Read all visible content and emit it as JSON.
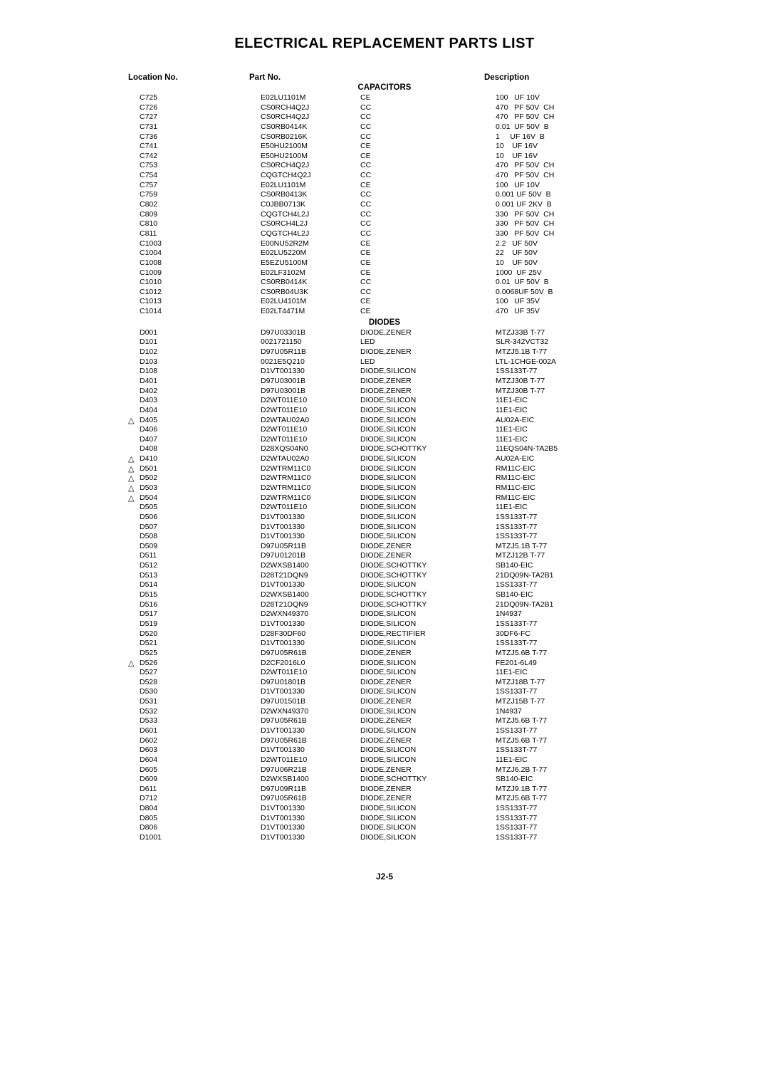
{
  "title": "ELECTRICAL REPLACEMENT PARTS LIST",
  "headers": {
    "location": "Location No.",
    "part": "Part No.",
    "description": "Description"
  },
  "sections": [
    {
      "name": "CAPACITORS",
      "rows": [
        {
          "loc": "C725",
          "part": "E02LU1101M",
          "type": "CE",
          "desc": "100   UF 10V"
        },
        {
          "loc": "C726",
          "part": "CS0RCH4Q2J",
          "type": "CC",
          "desc": "470   PF 50V  CH"
        },
        {
          "loc": "C727",
          "part": "CS0RCH4Q2J",
          "type": "CC",
          "desc": "470   PF 50V  CH"
        },
        {
          "loc": "C731",
          "part": "CS0RB0414K",
          "type": "CC",
          "desc": "0.01  UF 50V  B"
        },
        {
          "loc": "C736",
          "part": "CS0RB0216K",
          "type": "CC",
          "desc": "1     UF 16V  B"
        },
        {
          "loc": "C741",
          "part": "E50HU2100M",
          "type": "CE",
          "desc": "10    UF 16V"
        },
        {
          "loc": "C742",
          "part": "E50HU2100M",
          "type": "CE",
          "desc": "10    UF 16V"
        },
        {
          "loc": "C753",
          "part": "CS0RCH4Q2J",
          "type": "CC",
          "desc": "470   PF 50V  CH"
        },
        {
          "loc": "C754",
          "part": "CQGTCH4Q2J",
          "type": "CC",
          "desc": "470   PF 50V  CH"
        },
        {
          "loc": "C757",
          "part": "E02LU1101M",
          "type": "CE",
          "desc": "100   UF 10V"
        },
        {
          "loc": "C759",
          "part": "CS0RB0413K",
          "type": "CC",
          "desc": "0.001 UF 50V  B"
        },
        {
          "loc": "C802",
          "part": "C0JBB0713K",
          "type": "CC",
          "desc": "0.001 UF 2KV  B"
        },
        {
          "loc": "C809",
          "part": "CQGTCH4L2J",
          "type": "CC",
          "desc": "330   PF 50V  CH"
        },
        {
          "loc": "C810",
          "part": "CS0RCH4L2J",
          "type": "CC",
          "desc": "330   PF 50V  CH"
        },
        {
          "loc": "C811",
          "part": "CQGTCH4L2J",
          "type": "CC",
          "desc": "330   PF 50V  CH"
        },
        {
          "loc": "C1003",
          "part": "E00NU52R2M",
          "type": "CE",
          "desc": "2.2   UF 50V"
        },
        {
          "loc": "C1004",
          "part": "E02LU5220M",
          "type": "CE",
          "desc": "22    UF 50V"
        },
        {
          "loc": "C1008",
          "part": "E5EZU5100M",
          "type": "CE",
          "desc": "10    UF 50V"
        },
        {
          "loc": "C1009",
          "part": "E02LF3102M",
          "type": "CE",
          "desc": "1000  UF 25V"
        },
        {
          "loc": "C1010",
          "part": "CS0RB0414K",
          "type": "CC",
          "desc": "0.01  UF 50V  B"
        },
        {
          "loc": "C1012",
          "part": "CS0RB04U3K",
          "type": "CC",
          "desc": "0.0068UF 50V  B"
        },
        {
          "loc": "C1013",
          "part": "E02LU4101M",
          "type": "CE",
          "desc": "100   UF 35V"
        },
        {
          "loc": "C1014",
          "part": "E02LT4471M",
          "type": "CE",
          "desc": "470   UF 35V"
        }
      ]
    },
    {
      "name": "DIODES",
      "rows": [
        {
          "loc": "D001",
          "part": "D97U03301B",
          "type": "DIODE,ZENER",
          "desc": "MTZJ33B T-77"
        },
        {
          "loc": "D101",
          "part": "0021721150",
          "type": "LED",
          "desc": "SLR-342VCT32"
        },
        {
          "loc": "D102",
          "part": "D97U05R11B",
          "type": "DIODE,ZENER",
          "desc": "MTZJ5.1B T-77"
        },
        {
          "loc": "D103",
          "part": "0021E5Q210",
          "type": "LED",
          "desc": "LTL-1CHGE-002A"
        },
        {
          "loc": "D108",
          "part": "D1VT001330",
          "type": "DIODE,SILICON",
          "desc": "1SS133T-77"
        },
        {
          "loc": "D401",
          "part": "D97U03001B",
          "type": "DIODE,ZENER",
          "desc": "MTZJ30B T-77"
        },
        {
          "loc": "D402",
          "part": "D97U03001B",
          "type": "DIODE,ZENER",
          "desc": "MTZJ30B T-77"
        },
        {
          "loc": "D403",
          "part": "D2WT011E10",
          "type": "DIODE,SILICON",
          "desc": "11E1-EIC"
        },
        {
          "loc": "D404",
          "part": "D2WT011E10",
          "type": "DIODE,SILICON",
          "desc": "11E1-EIC"
        },
        {
          "loc": "D405",
          "part": "D2WTAU02A0",
          "type": "DIODE,SILICON",
          "desc": "AU02A-EIC",
          "marker": true
        },
        {
          "loc": "D406",
          "part": "D2WT011E10",
          "type": "DIODE,SILICON",
          "desc": "11E1-EIC"
        },
        {
          "loc": "D407",
          "part": "D2WT011E10",
          "type": "DIODE,SILICON",
          "desc": "11E1-EIC"
        },
        {
          "loc": "D408",
          "part": "D28XQS04N0",
          "type": "DIODE,SCHOTTKY",
          "desc": "11EQS04N-TA2B5"
        },
        {
          "loc": "D410",
          "part": "D2WTAU02A0",
          "type": "DIODE,SILICON",
          "desc": "AU02A-EIC",
          "marker": true
        },
        {
          "loc": "D501",
          "part": "D2WTRM11C0",
          "type": "DIODE,SILICON",
          "desc": "RM11C-EIC",
          "marker": true
        },
        {
          "loc": "D502",
          "part": "D2WTRM11C0",
          "type": "DIODE,SILICON",
          "desc": "RM11C-EIC",
          "marker": true
        },
        {
          "loc": "D503",
          "part": "D2WTRM11C0",
          "type": "DIODE,SILICON",
          "desc": "RM11C-EIC",
          "marker": true
        },
        {
          "loc": "D504",
          "part": "D2WTRM11C0",
          "type": "DIODE,SILICON",
          "desc": "RM11C-EIC",
          "marker": true
        },
        {
          "loc": "D505",
          "part": "D2WT011E10",
          "type": "DIODE,SILICON",
          "desc": "11E1-EIC"
        },
        {
          "loc": "D506",
          "part": "D1VT001330",
          "type": "DIODE,SILICON",
          "desc": "1SS133T-77"
        },
        {
          "loc": "D507",
          "part": "D1VT001330",
          "type": "DIODE,SILICON",
          "desc": "1SS133T-77"
        },
        {
          "loc": "D508",
          "part": "D1VT001330",
          "type": "DIODE,SILICON",
          "desc": "1SS133T-77"
        },
        {
          "loc": "D509",
          "part": "D97U05R11B",
          "type": "DIODE,ZENER",
          "desc": "MTZJ5.1B T-77"
        },
        {
          "loc": "D511",
          "part": "D97U01201B",
          "type": "DIODE,ZENER",
          "desc": "MTZJ12B T-77"
        },
        {
          "loc": "D512",
          "part": "D2WXSB1400",
          "type": "DIODE,SCHOTTKY",
          "desc": "SB140-EIC"
        },
        {
          "loc": "D513",
          "part": "D28T21DQN9",
          "type": "DIODE,SCHOTTKY",
          "desc": "21DQ09N-TA2B1"
        },
        {
          "loc": "D514",
          "part": "D1VT001330",
          "type": "DIODE,SILICON",
          "desc": "1SS133T-77"
        },
        {
          "loc": "D515",
          "part": "D2WXSB1400",
          "type": "DIODE,SCHOTTKY",
          "desc": "SB140-EIC"
        },
        {
          "loc": "D516",
          "part": "D28T21DQN9",
          "type": "DIODE,SCHOTTKY",
          "desc": "21DQ09N-TA2B1"
        },
        {
          "loc": "D517",
          "part": "D2WXN49370",
          "type": "DIODE,SILICON",
          "desc": "1N4937"
        },
        {
          "loc": "D519",
          "part": "D1VT001330",
          "type": "DIODE,SILICON",
          "desc": "1SS133T-77"
        },
        {
          "loc": "D520",
          "part": "D28F30DF60",
          "type": "DIODE,RECTIFIER",
          "desc": "30DF6-FC"
        },
        {
          "loc": "D521",
          "part": "D1VT001330",
          "type": "DIODE,SILICON",
          "desc": "1SS133T-77"
        },
        {
          "loc": "D525",
          "part": "D97U05R61B",
          "type": "DIODE,ZENER",
          "desc": "MTZJ5.6B T-77"
        },
        {
          "loc": "D526",
          "part": "D2CF2016L0",
          "type": "DIODE,SILICON",
          "desc": "FE201-6L49",
          "marker": true
        },
        {
          "loc": "D527",
          "part": "D2WT011E10",
          "type": "DIODE,SILICON",
          "desc": "11E1-EIC"
        },
        {
          "loc": "D528",
          "part": "D97U01801B",
          "type": "DIODE,ZENER",
          "desc": "MTZJ18B T-77"
        },
        {
          "loc": "D530",
          "part": "D1VT001330",
          "type": "DIODE,SILICON",
          "desc": "1SS133T-77"
        },
        {
          "loc": "D531",
          "part": "D97U01501B",
          "type": "DIODE,ZENER",
          "desc": "MTZJ15B T-77"
        },
        {
          "loc": "D532",
          "part": "D2WXN49370",
          "type": "DIODE,SILICON",
          "desc": "1N4937"
        },
        {
          "loc": "D533",
          "part": "D97U05R61B",
          "type": "DIODE,ZENER",
          "desc": "MTZJ5.6B T-77"
        },
        {
          "loc": "D601",
          "part": "D1VT001330",
          "type": "DIODE,SILICON",
          "desc": "1SS133T-77"
        },
        {
          "loc": "D602",
          "part": "D97U05R61B",
          "type": "DIODE,ZENER",
          "desc": "MTZJ5.6B T-77"
        },
        {
          "loc": "D603",
          "part": "D1VT001330",
          "type": "DIODE,SILICON",
          "desc": "1SS133T-77"
        },
        {
          "loc": "D604",
          "part": "D2WT011E10",
          "type": "DIODE,SILICON",
          "desc": "11E1-EIC"
        },
        {
          "loc": "D605",
          "part": "D97U06R21B",
          "type": "DIODE,ZENER",
          "desc": "MTZJ6.2B T-77"
        },
        {
          "loc": "D609",
          "part": "D2WXSB1400",
          "type": "DIODE,SCHOTTKY",
          "desc": "SB140-EIC"
        },
        {
          "loc": "D611",
          "part": "D97U09R11B",
          "type": "DIODE,ZENER",
          "desc": "MTZJ9.1B T-77"
        },
        {
          "loc": "D712",
          "part": "D97U05R61B",
          "type": "DIODE,ZENER",
          "desc": "MTZJ5.6B T-77"
        },
        {
          "loc": "D804",
          "part": "D1VT001330",
          "type": "DIODE,SILICON",
          "desc": "1SS133T-77"
        },
        {
          "loc": "D805",
          "part": "D1VT001330",
          "type": "DIODE,SILICON",
          "desc": "1SS133T-77"
        },
        {
          "loc": "D806",
          "part": "D1VT001330",
          "type": "DIODE,SILICON",
          "desc": "1SS133T-77"
        },
        {
          "loc": "D1001",
          "part": "D1VT001330",
          "type": "DIODE,SILICON",
          "desc": "1SS133T-77"
        }
      ]
    }
  ],
  "footer": "J2-5",
  "style": {
    "bg": "#ffffff",
    "text": "#000000",
    "title_fontsize": 20,
    "body_fontsize": 11,
    "row_fontsize": 10.5
  }
}
